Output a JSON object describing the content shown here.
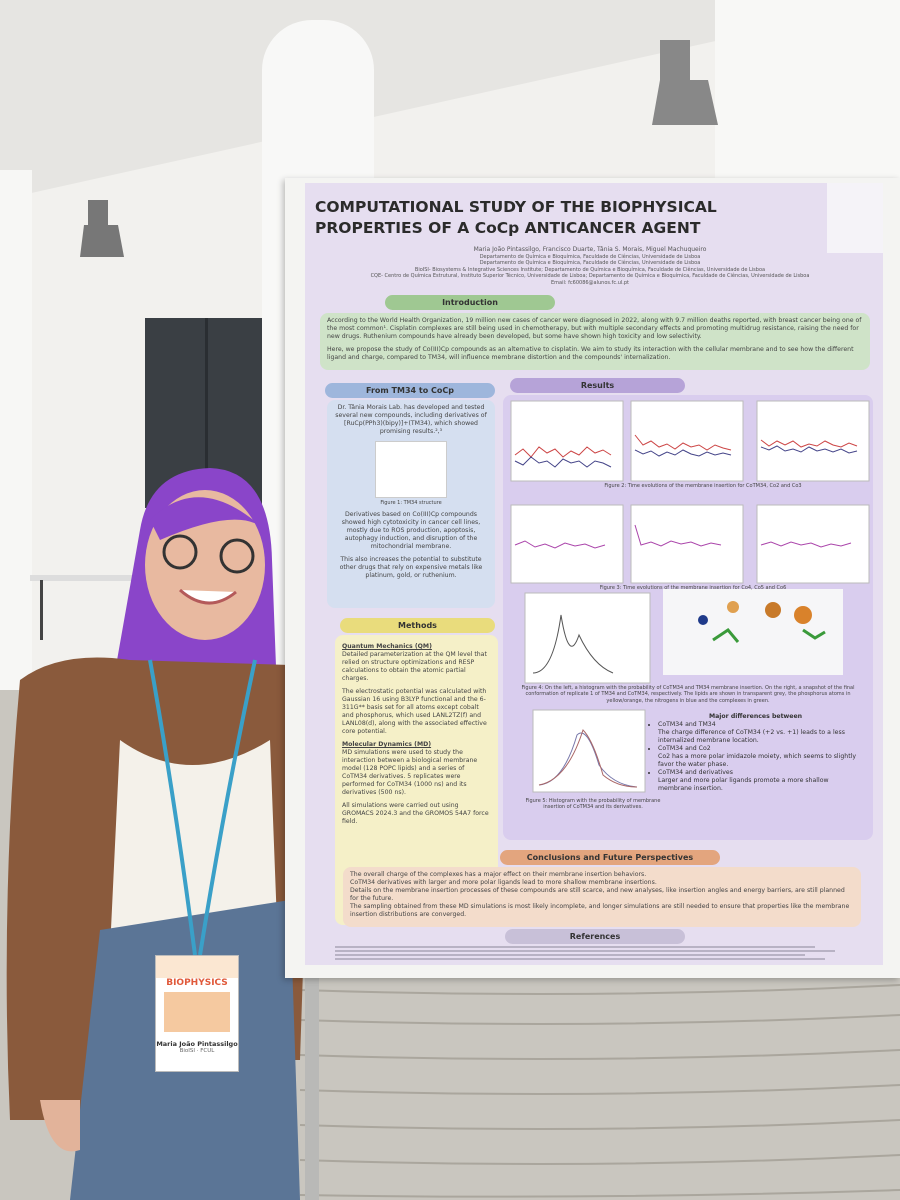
{
  "poster": {
    "title": "COMPUTATIONAL STUDY OF THE BIOPHYSICAL PROPERTIES OF A CoCp ANTICANCER AGENT",
    "authors": "Maria João Pintassilgo, Francisco Duarte, Tânia S. Morais, Miguel Machuqueiro",
    "affiliations": [
      "Departamento de Química e Bioquímica, Faculdade de Ciências, Universidade de Lisboa",
      "Departamento de Química e Bioquímica, Faculdade de Ciências, Universidade de Lisboa",
      "BioISI- Biosystems & Integrative Sciences Institute; Departamento de Química e Bioquímica, Faculdade de Ciências, Universidade de Lisboa",
      "CQE- Centro de Química Estrutural, Instituto Superior Técnico, Universidade de Lisboa; Departamento de Química e Bioquímica, Faculdade de Ciências, Universidade de Lisboa",
      "Email: fc60086@alunos.fc.ul.pt"
    ],
    "introduction": {
      "heading": "Introduction",
      "paragraphs": [
        "According to the World Health Organization, 19 million new cases of cancer were diagnosed in 2022, along with 9.7 million deaths reported, with breast cancer being one of the most common¹. Cisplatin complexes are still being used in chemotherapy, but with multiple secondary effects and promoting multidrug resistance, raising the need for new drugs. Ruthenium compounds have already been developed, but some have shown high toxicity and low selectivity.",
        "Here, we propose the study of Co(III)Cp compounds as an alternative to cisplatin. We aim to study its interaction with the cellular membrane and to see how the different ligand and charge, compared to TM34, will influence membrane distortion and the compounds' internalization."
      ]
    },
    "from_tm34": {
      "heading": "From TM34 to CoCp",
      "paragraphs": [
        "Dr. Tânia Morais Lab. has developed and tested several new compounds, including derivatives of [RuCp(PPh3)(bipy)]+(TM34), which showed promising results.²,³",
        "Derivatives based on Co(III)Cp compounds showed high cytotoxicity in cancer cell lines, mostly due to ROS production, apoptosis, autophagy induction, and disruption of the mitochondrial membrane.",
        "This also increases the potential to substitute other drugs that rely on expensive metals like platinum, gold, or ruthenium."
      ],
      "figure_caption": "Figure 1: TM34 structure"
    },
    "methods": {
      "heading": "Methods",
      "qm_heading": "Quantum Mechanics (QM)",
      "qm_paragraphs": [
        "Detailed parameterization at the QM level that relied on structure optimizations and RESP calculations to obtain the atomic partial charges.",
        "The electrostatic potential was calculated with Gaussian 16 using B3LYP functional and the 6-311G** basis set for all atoms except cobalt and phosphorus, which used LANL2TZ(f) and LANL08(d), along with the associated effective core potential."
      ],
      "md_heading": "Molecular Dynamics (MD)",
      "md_paragraphs": [
        "MD simulations were used to study the interaction between a biological membrane model (128 POPC lipids) and a series of CoTM34 derivatives. 5 replicates were performed for CoTM34 (1000 ns) and its derivatives (500 ns).",
        "All simulations were carried out using GROMACS 2024.3 and the GROMOS 54A7 force field."
      ]
    },
    "results": {
      "heading": "Results",
      "captions": [
        "Figure 2: Time evolutions of the membrane insertion for CoTM34, Co2 and Co3",
        "Figure 3: Time evolutions of the membrane insertion for Co4, Co5 and Co6",
        "Figure 4: On the left, a histogram with the probability of CoTM34 and TM34 membrane insertion. On the right, a snapshot of the final conformation of replicate 1 of TM34 and CoTM34, respectively. The lipids are shown in transparent grey, the phosphorus atoms in yellow/orange, the nitrogens in blue and the complexes in green.",
        "Figure 5: Histogram with the probability of membrane insertion of CoTM34 and its derivatives."
      ],
      "differences_heading": "Major differences between",
      "differences": [
        {
          "pair": "CoTM34 and TM34",
          "text": "The charge difference of CoTM34 (+2 vs. +1) leads to a less internalized membrane location."
        },
        {
          "pair": "CoTM34 and Co2",
          "text": "Co2 has a more polar imidazole moiety, which seems to slightly favor the water phase."
        },
        {
          "pair": "CoTM34 and derivatives",
          "text": "Larger and more polar ligands promote a more shallow membrane insertion."
        }
      ]
    },
    "conclusions": {
      "heading": "Conclusions and Future Perspectives",
      "lines": [
        "The overall charge of the complexes has a major effect on their membrane insertion behaviors.",
        "CoTM34 derivatives with larger and more polar ligands lead to more shallow membrane insertions.",
        "Details on the membrane insertion processes of these compounds are still scarce, and new analyses, like insertion angles and energy barriers, are still planned for the future.",
        "The sampling obtained from these MD simulations is most likely incomplete, and longer simulations are still needed to ensure that properties like the membrane insertion distributions are converged."
      ]
    },
    "references_heading": "References"
  },
  "badge": {
    "event": "BIOPHYSICS",
    "name": "Maria João Pintassilgo",
    "org": "BioISI · FCUL"
  }
}
